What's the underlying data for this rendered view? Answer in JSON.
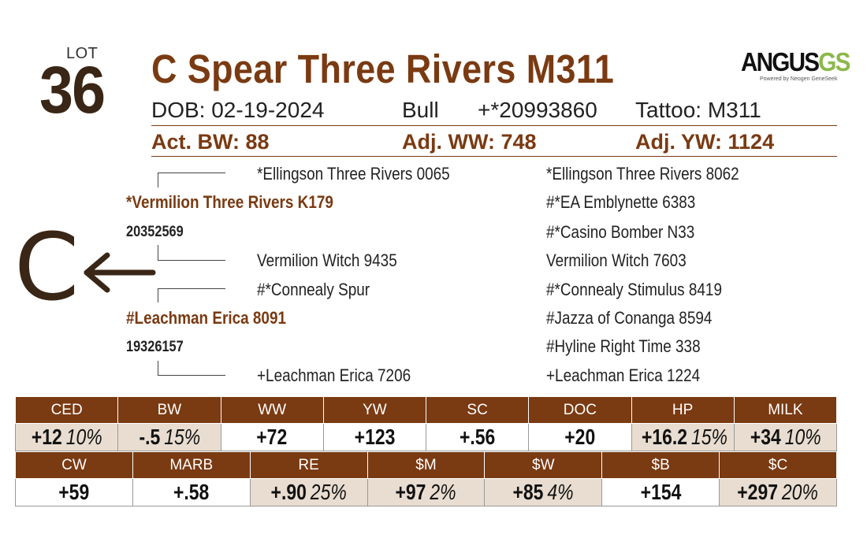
{
  "lot": {
    "label": "LOT",
    "number": "36"
  },
  "animal": {
    "name": "C Spear Three Rivers M311",
    "dob": "DOB:  02-19-2024",
    "sex": "Bull",
    "registration": "+*20993860",
    "tattoo": "Tattoo:  M311"
  },
  "performance": {
    "act_bw": "Act. BW: 88",
    "adj_ww": "Adj. WW: 748",
    "adj_yw": "Adj. YW: 1124"
  },
  "logo": {
    "main": "ANGUS",
    "accent": "GS",
    "sub": "Powered by Neogen GeneSeek",
    "icon": "angus-gs-logo-icon"
  },
  "pedigree": {
    "sire": {
      "name": "*Vermilion Three Rivers K179",
      "reg": "20352569"
    },
    "sire_sire": "*Ellingson Three Rivers 0065",
    "sire_dam": "Vermilion Witch 9435",
    "dam": {
      "name": "#Leachman Erica 8091",
      "reg": "19326157"
    },
    "dam_sire": "#*Connealy Spur",
    "dam_dam": "+Leachman Erica 7206",
    "third_gen": [
      "*Ellingson Three Rivers 8062",
      "#*EA Emblynette 6383",
      "#*Casino Bomber N33",
      "Vermilion Witch 7603",
      "#*Connealy Stimulus 8419",
      "#Jazza of Conanga 8594",
      "#Hyline Right Time 338",
      "+Leachman Erica 1224"
    ],
    "breeder_mark": "C",
    "arrow_icon": "arrow-left-icon"
  },
  "epd_row1": [
    {
      "label": "CED",
      "value": "+12",
      "pct": "10%",
      "shaded": true
    },
    {
      "label": "BW",
      "value": "-.5",
      "pct": "15%",
      "shaded": true
    },
    {
      "label": "WW",
      "value": "+72",
      "pct": "",
      "shaded": false
    },
    {
      "label": "YW",
      "value": "+123",
      "pct": "",
      "shaded": false
    },
    {
      "label": "SC",
      "value": "+.56",
      "pct": "",
      "shaded": false
    },
    {
      "label": "DOC",
      "value": "+20",
      "pct": "",
      "shaded": false
    },
    {
      "label": "HP",
      "value": "+16.2",
      "pct": "15%",
      "shaded": true
    },
    {
      "label": "MILK",
      "value": "+34",
      "pct": "10%",
      "shaded": true
    }
  ],
  "epd_row2": [
    {
      "label": "CW",
      "value": "+59",
      "pct": "",
      "shaded": false
    },
    {
      "label": "MARB",
      "value": "+.58",
      "pct": "",
      "shaded": false
    },
    {
      "label": "RE",
      "value": "+.90",
      "pct": "25%",
      "shaded": true
    },
    {
      "label": "$M",
      "value": "+97",
      "pct": "2%",
      "shaded": true
    },
    {
      "label": "$W",
      "value": "+85",
      "pct": "4%",
      "shaded": true
    },
    {
      "label": "$B",
      "value": "+154",
      "pct": "",
      "shaded": false
    },
    {
      "label": "$C",
      "value": "+297",
      "pct": "20%",
      "shaded": true
    }
  ],
  "colors": {
    "brown": "#7a3a12",
    "dark_brown": "#3a2616",
    "shade": "#e8ddd0",
    "logo_green": "#8bb84a"
  }
}
